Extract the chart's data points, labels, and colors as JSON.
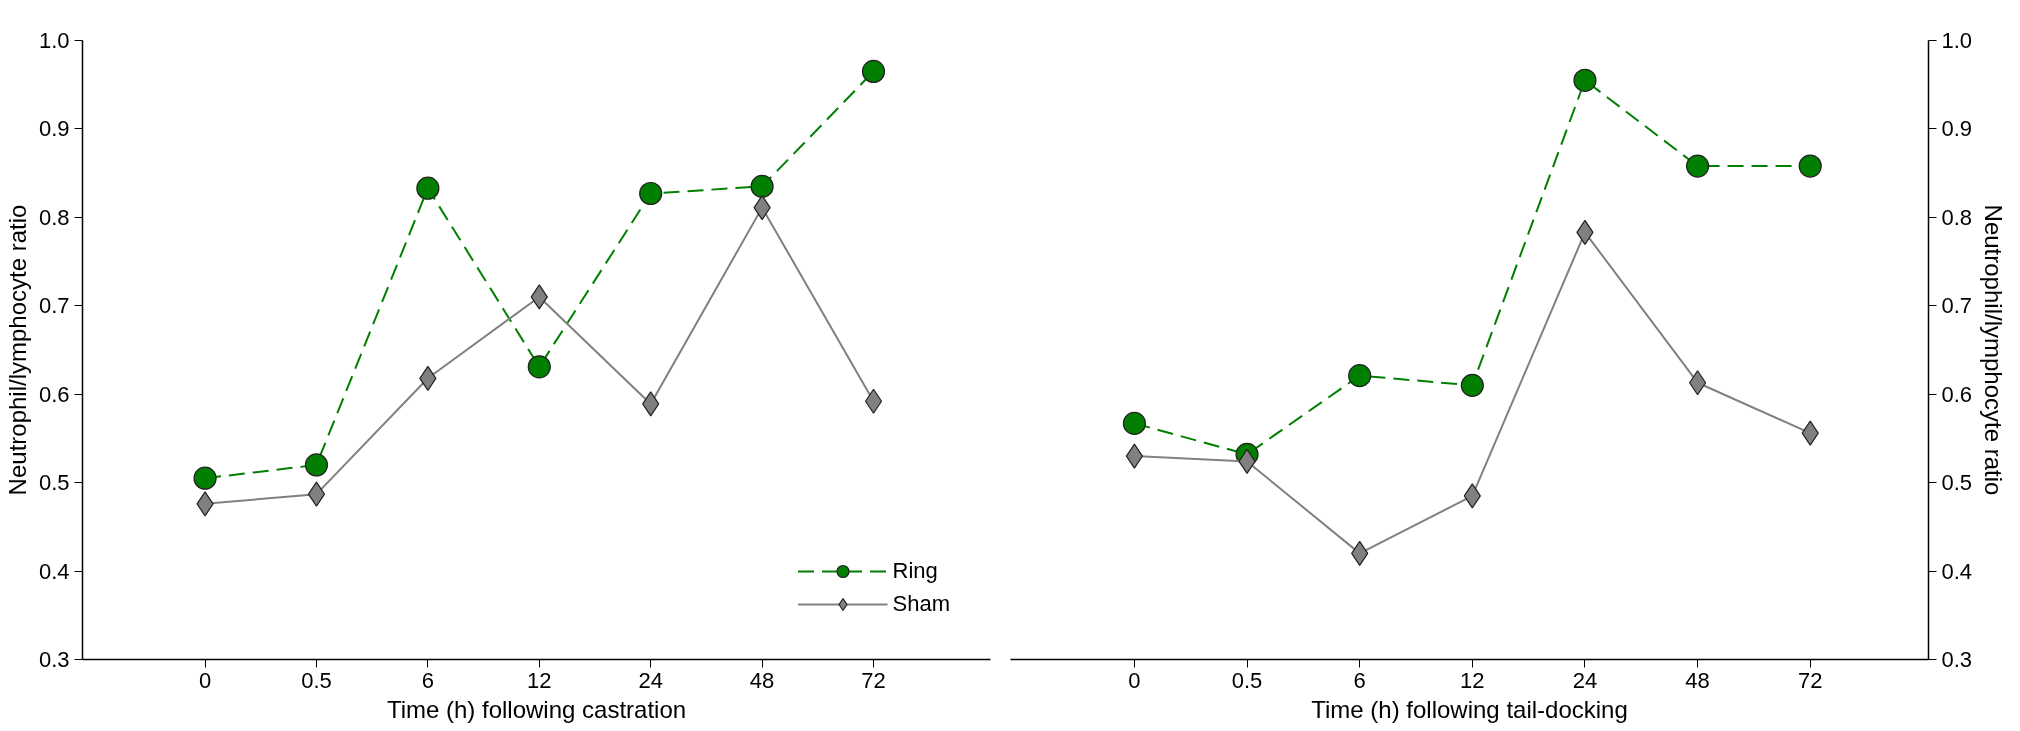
{
  "chart_data": [
    {
      "type": "line",
      "categories": [
        "0",
        "0.5",
        "6",
        "12",
        "24",
        "48",
        "72"
      ],
      "xlabel": "Time (h) following castration",
      "ylabel": "Neutrophil/lymphocyte ratio",
      "ylim": [
        0.3,
        1.0
      ],
      "yticks": [
        0.3,
        0.4,
        0.5,
        0.6,
        0.7,
        0.8,
        0.9,
        {
          "value": 1.0,
          "label": "1.0"
        }
      ],
      "grid": false,
      "legend": "bottom right",
      "series": [
        {
          "name": "Ring",
          "color": "#007f00",
          "marker": "circle",
          "line_style": "dashed",
          "values": [
            0.505,
            0.52,
            0.833,
            0.631,
            0.827,
            0.835,
            0.965
          ]
        },
        {
          "name": "Sham",
          "color": "#808080",
          "marker": "diamond",
          "line_style": "solid",
          "values": [
            0.476,
            0.487,
            0.618,
            0.71,
            0.589,
            0.811,
            0.592
          ]
        }
      ]
    },
    {
      "type": "line",
      "categories": [
        "0",
        "0.5",
        "6",
        "12",
        "24",
        "48",
        "72"
      ],
      "xlabel": "Time (h) following tail-docking",
      "y2label": "Neutrophil/lymphocyte ratio",
      "y2lim": [
        0.3,
        1.0
      ],
      "y2ticks": [
        0.3,
        0.4,
        0.5,
        0.6,
        0.7,
        0.8,
        0.9,
        {
          "value": 1.0,
          "label": "1.0"
        }
      ],
      "grid": false,
      "legend": false,
      "series": [
        {
          "color": "#007f00",
          "marker": "circle",
          "line_style": "dashed",
          "axis": "y2",
          "values": [
            0.567,
            0.532,
            0.621,
            0.61,
            0.955,
            0.858,
            0.858
          ]
        },
        {
          "color": "#808080",
          "marker": "diamond",
          "line_style": "solid",
          "axis": "y2",
          "values": [
            0.53,
            0.524,
            0.42,
            0.485,
            0.783,
            0.613,
            0.556
          ]
        }
      ]
    }
  ]
}
